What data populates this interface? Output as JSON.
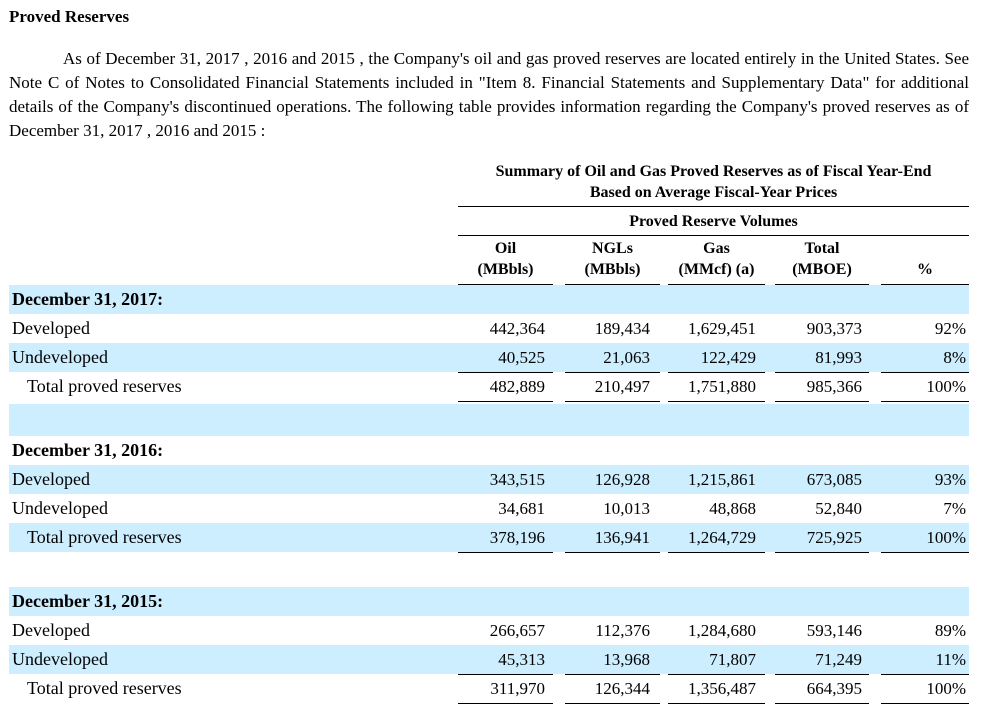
{
  "title": "Proved Reserves",
  "intro": "As of December 31, 2017 , 2016 and 2015 , the Company's oil and gas proved reserves are located entirely in the United States. See Note C of Notes to Consolidated Financial Statements included in \"Item 8. Financial Statements and Supplementary Data\" for additional details of the Company's discontinued operations. The following table provides information regarding the Company's proved reserves as of December 31, 2017 , 2016 and 2015 :",
  "table": {
    "summary_line1": "Summary of Oil and Gas Proved Reserves as of Fiscal Year-End",
    "summary_line2": "Based on Average Fiscal-Year Prices",
    "group_header": "Proved Reserve Volumes",
    "columns": [
      {
        "line1": "Oil",
        "line2": "(MBbls)"
      },
      {
        "line1": "NGLs",
        "line2": "(MBbls)"
      },
      {
        "line1": "Gas",
        "line2": "(MMcf) (a)"
      },
      {
        "line1": "Total",
        "line2": "(MBOE)"
      },
      {
        "line1": "",
        "line2": "%"
      }
    ],
    "sections": [
      {
        "heading": "December 31, 2017:",
        "rows": [
          {
            "label": "Developed",
            "oil": "442,364",
            "ngls": "189,434",
            "gas": "1,629,451",
            "total": "903,373",
            "pct": "92%"
          },
          {
            "label": "Undeveloped",
            "oil": "40,525",
            "ngls": "21,063",
            "gas": "122,429",
            "total": "81,993",
            "pct": "8%"
          },
          {
            "label": "Total proved reserves",
            "oil": "482,889",
            "ngls": "210,497",
            "gas": "1,751,880",
            "total": "985,366",
            "pct": "100%"
          }
        ]
      },
      {
        "heading": "December 31, 2016:",
        "rows": [
          {
            "label": "Developed",
            "oil": "343,515",
            "ngls": "126,928",
            "gas": "1,215,861",
            "total": "673,085",
            "pct": "93%"
          },
          {
            "label": "Undeveloped",
            "oil": "34,681",
            "ngls": "10,013",
            "gas": "48,868",
            "total": "52,840",
            "pct": "7%"
          },
          {
            "label": "Total proved reserves",
            "oil": "378,196",
            "ngls": "136,941",
            "gas": "1,264,729",
            "total": "725,925",
            "pct": "100%"
          }
        ]
      },
      {
        "heading": "December 31, 2015:",
        "rows": [
          {
            "label": "Developed",
            "oil": "266,657",
            "ngls": "112,376",
            "gas": "1,284,680",
            "total": "593,146",
            "pct": "89%"
          },
          {
            "label": "Undeveloped",
            "oil": "45,313",
            "ngls": "13,968",
            "gas": "71,807",
            "total": "71,249",
            "pct": "11%"
          },
          {
            "label": "Total proved reserves",
            "oil": "311,970",
            "ngls": "126,344",
            "gas": "1,356,487",
            "total": "664,395",
            "pct": "100%"
          }
        ]
      }
    ]
  },
  "colors": {
    "row_shade": "#cceeff"
  }
}
